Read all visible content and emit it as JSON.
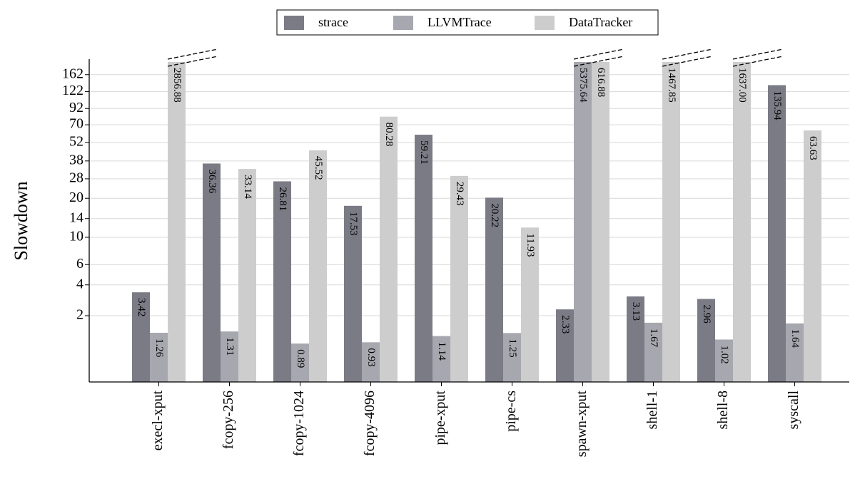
{
  "chart_data": {
    "type": "bar",
    "y_label": "Slowdown",
    "categories": [
      "execl-xput",
      "fcopy-256",
      "fcopy-1024",
      "fcopy-4096",
      "pipe-xput",
      "pipe-cs",
      "spawn-xput",
      "shell-1",
      "shell-8",
      "syscall"
    ],
    "series": [
      {
        "name": "strace",
        "color": "#7b7b86",
        "values": [
          3.42,
          36.36,
          26.81,
          17.53,
          59.21,
          20.22,
          2.33,
          3.13,
          2.96,
          135.94
        ],
        "value_labels": [
          "3.42",
          "36.36",
          "26.81",
          "17.53",
          "59.21",
          "20.22",
          "2.33",
          "3.13",
          "2.96",
          "135.94"
        ]
      },
      {
        "name": "LLVMTrace",
        "color": "#a7a7af",
        "values": [
          1.26,
          1.31,
          0.89,
          0.93,
          1.14,
          1.25,
          5375.64,
          1.67,
          1.02,
          1.64
        ],
        "value_labels": [
          "1.26",
          "1.31",
          "0.89",
          "0.93",
          "1.14",
          "1.25",
          "5375.64",
          "1.67",
          "1.02",
          "1.64"
        ]
      },
      {
        "name": "DataTracker",
        "color": "#cdcdcd",
        "values": [
          2856.88,
          33.14,
          45.52,
          80.28,
          29.43,
          11.93,
          616.88,
          1467.85,
          1637.0,
          63.63
        ],
        "value_labels": [
          "2856.88",
          "33.14",
          "45.52",
          "80.28",
          "29.43",
          "11.93",
          "616.88",
          "1467.85",
          "1637.00",
          "63.63"
        ]
      }
    ],
    "yscale": "log1p",
    "ylim": [
      0,
      200
    ],
    "yticks": [
      2,
      4,
      6,
      10,
      14,
      20,
      28,
      38,
      52,
      70,
      92,
      122,
      162
    ],
    "grid": true,
    "legend": "top"
  }
}
